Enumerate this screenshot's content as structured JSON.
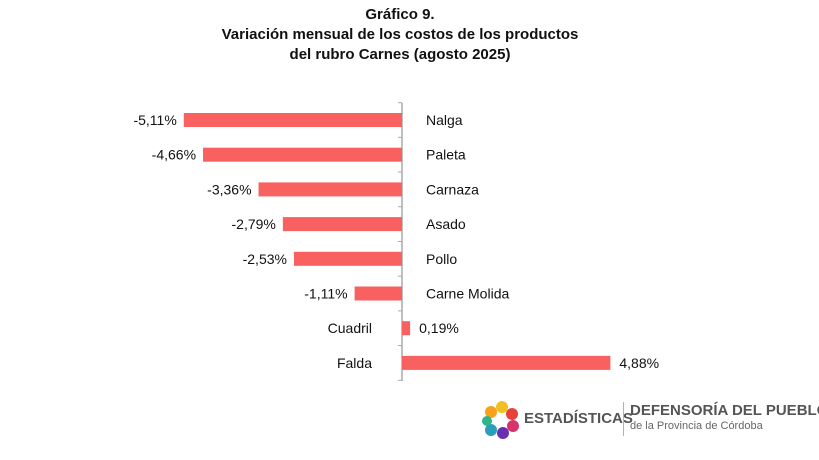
{
  "chart_data": {
    "type": "bar",
    "orientation": "horizontal",
    "title": [
      "Gráfico 9.",
      "Variación mensual de los costos de los productos",
      "del rubro Carnes (agosto 2025)"
    ],
    "categories": [
      "Nalga",
      "Paleta",
      "Carnaza",
      "Asado",
      "Pollo",
      "Carne Molida",
      "Cuadril",
      "Falda"
    ],
    "values": [
      -5.11,
      -4.66,
      -3.36,
      -2.79,
      -2.53,
      -1.11,
      0.19,
      4.88
    ],
    "data_labels": [
      "-5,11%",
      "-4,66%",
      "-3,36%",
      "-2,79%",
      "-2,53%",
      "-1,11%",
      "0,19%",
      "4,88%"
    ],
    "bar_color": "#f96161",
    "grid": false,
    "legend": "none"
  },
  "footer": {
    "brand1": "ESTADÍSTICAS",
    "brand2": "DEFENSORÍA DEL PUEBLO",
    "brand2_sub": "de la Provincia de Córdoba"
  }
}
